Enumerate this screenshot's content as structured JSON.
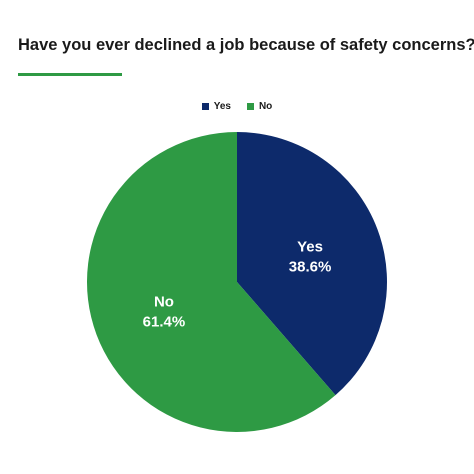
{
  "chart_data": {
    "type": "pie",
    "title": "Have you ever declined a job because of safety concerns?",
    "slices": [
      {
        "label": "Yes",
        "value": 38.6,
        "value_label": "38.6%",
        "color": "#0d2a6b"
      },
      {
        "label": "No",
        "value": 61.4,
        "value_label": "61.4%",
        "color": "#2e9a44"
      }
    ],
    "legend": {
      "position": "top-center",
      "entries": [
        "Yes",
        "No"
      ]
    },
    "start_angle": "12 o'clock, clockwise",
    "accent_color": "#2e9a44"
  }
}
